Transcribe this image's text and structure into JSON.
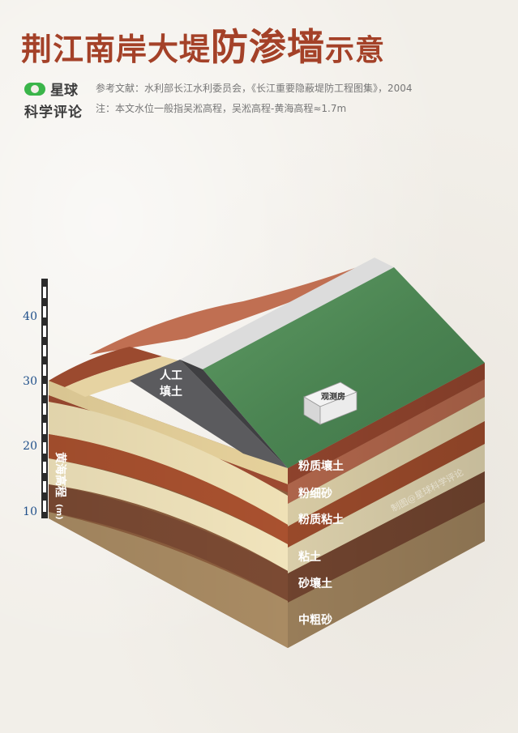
{
  "title": {
    "part1": "荆江南岸大堤",
    "part2": "防渗墙",
    "part3": "示意"
  },
  "brand": {
    "line1": "星球",
    "line2": "科学评论"
  },
  "references": {
    "source": "参考文献：水利部长江水利委员会，《长江重要隐蔽堤防工程图集》，2004",
    "note": "注：本文水位一般指吴淞高程，吴淞高程-黄海高程≈1.7m"
  },
  "scale": {
    "ticks": [
      "40",
      "30",
      "20",
      "10"
    ],
    "label": "黄海高程",
    "unit": "(m)"
  },
  "levee": {
    "fill_label_1": "人工",
    "fill_label_2": "填土"
  },
  "building": {
    "label": "观测房"
  },
  "layers": [
    "粉质壤土",
    "粉细砂",
    "粉质粘土",
    "粘土",
    "砂壤土",
    "中粗砂"
  ],
  "watermark": "制图@星球科学评论",
  "colors": {
    "title": "#a44128",
    "grass": "#4f8a56",
    "clay_red": "#9c4430",
    "sand_pale": "#eedfb4",
    "brown": "#8a5a3b",
    "scale_blue": "#1f4f8a"
  }
}
